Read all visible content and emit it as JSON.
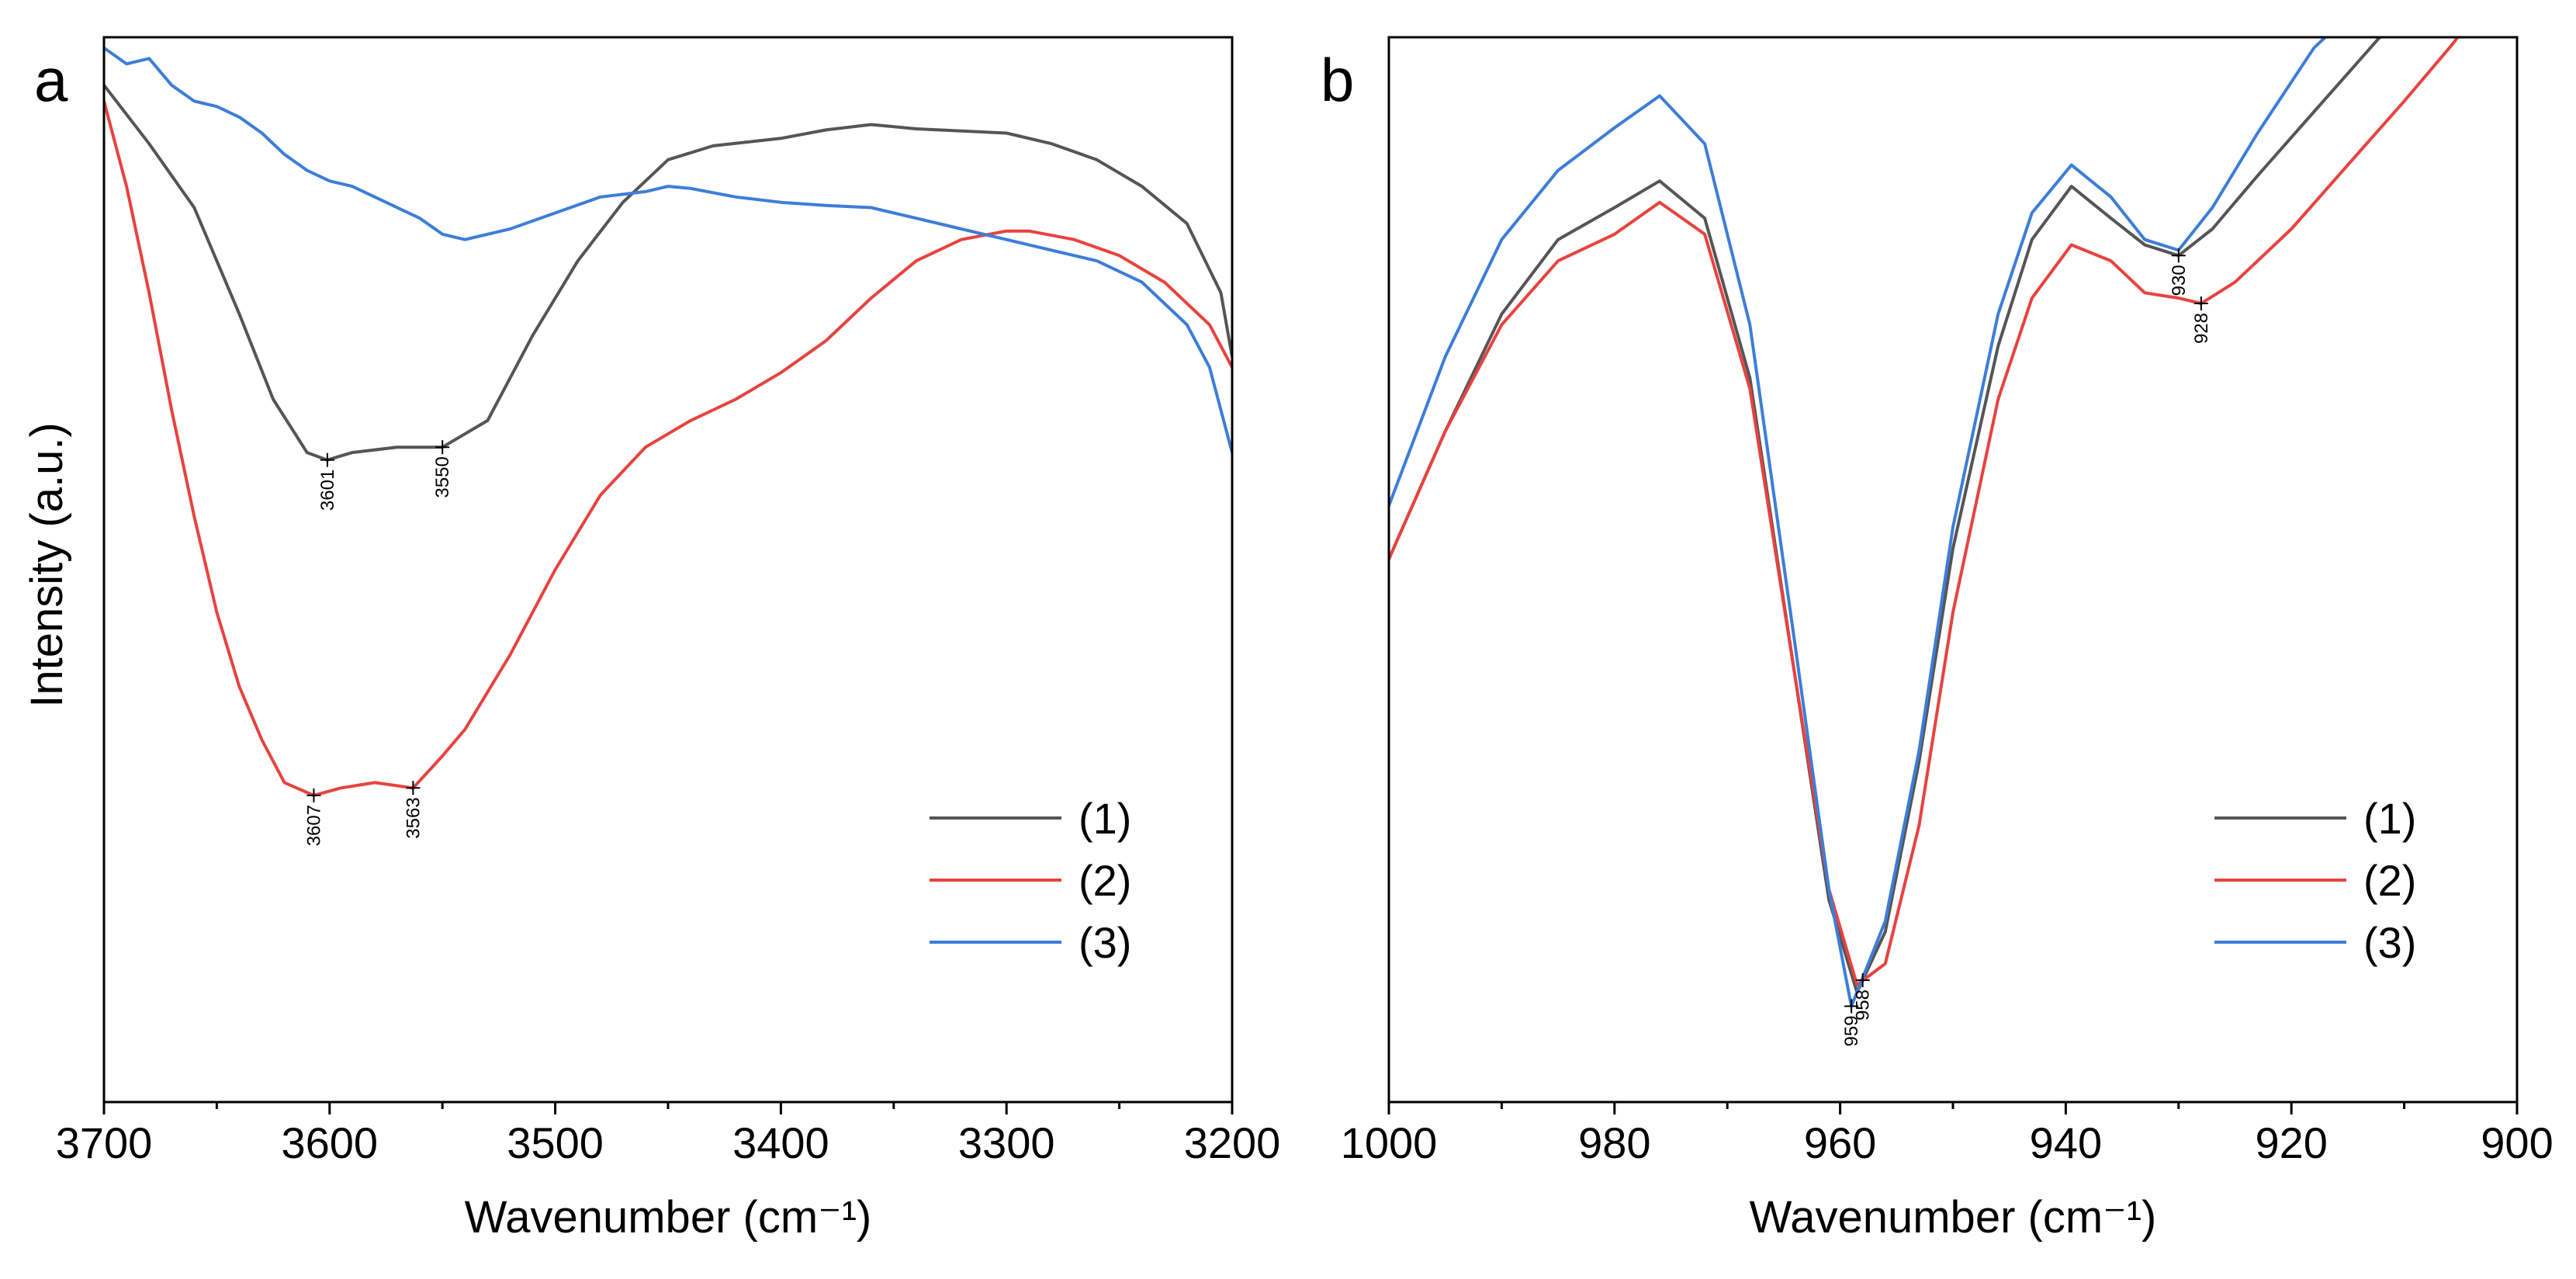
{
  "figure": {
    "ylabel": "Intensity (a.u.)"
  },
  "chart_data": [
    {
      "type": "line",
      "panel": "a",
      "xlabel": "Wavenumber (cm⁻¹)",
      "ylabel": "Intensity (a.u.)",
      "xlim": [
        3700,
        3200
      ],
      "ylim": [
        0,
        100
      ],
      "x_reversed": true,
      "xticks": [
        3700,
        3600,
        3500,
        3400,
        3300,
        3200
      ],
      "xtick_labels": [
        "3700",
        "3600",
        "3500",
        "3400",
        "3300",
        "3200"
      ],
      "legend_position": "bottom-right",
      "series": [
        {
          "name": "(1)",
          "color": "#555555",
          "x": [
            3700,
            3680,
            3660,
            3640,
            3625,
            3610,
            3601,
            3590,
            3570,
            3550,
            3530,
            3510,
            3490,
            3470,
            3450,
            3430,
            3400,
            3380,
            3360,
            3340,
            3320,
            3300,
            3280,
            3260,
            3240,
            3220,
            3205,
            3200
          ],
          "y": [
            95.5,
            90.0,
            84.0,
            74.0,
            66.0,
            61.0,
            60.3,
            61.0,
            61.5,
            61.5,
            64.0,
            72.0,
            79.0,
            84.5,
            88.5,
            89.8,
            90.5,
            91.3,
            91.8,
            91.4,
            91.2,
            91.0,
            90.0,
            88.5,
            86.0,
            82.5,
            76.0,
            70.0
          ]
        },
        {
          "name": "(2)",
          "color": "#E8423F",
          "x": [
            3700,
            3690,
            3680,
            3670,
            3660,
            3650,
            3640,
            3630,
            3620,
            3607,
            3595,
            3580,
            3563,
            3550,
            3540,
            3520,
            3500,
            3480,
            3460,
            3440,
            3420,
            3400,
            3380,
            3360,
            3340,
            3320,
            3300,
            3290,
            3270,
            3250,
            3230,
            3210,
            3200
          ],
          "y": [
            94.0,
            86.0,
            76.0,
            65.0,
            55.0,
            46.0,
            39.0,
            34.0,
            30.0,
            28.8,
            29.5,
            30.0,
            29.5,
            32.5,
            35.0,
            42.0,
            50.0,
            57.0,
            61.5,
            64.0,
            66.0,
            68.5,
            71.5,
            75.5,
            79.0,
            81.0,
            81.8,
            81.8,
            81.0,
            79.5,
            77.0,
            73.0,
            69.0
          ]
        },
        {
          "name": "(3)",
          "color": "#3D7DD8",
          "x": [
            3700,
            3690,
            3680,
            3670,
            3660,
            3650,
            3640,
            3630,
            3620,
            3610,
            3600,
            3590,
            3580,
            3570,
            3560,
            3550,
            3540,
            3530,
            3520,
            3500,
            3480,
            3460,
            3450,
            3440,
            3420,
            3400,
            3380,
            3360,
            3340,
            3320,
            3300,
            3280,
            3260,
            3240,
            3220,
            3210,
            3200
          ],
          "y": [
            99.0,
            97.5,
            98.0,
            95.5,
            94.0,
            93.5,
            92.5,
            91.0,
            89.0,
            87.5,
            86.5,
            86.0,
            85.0,
            84.0,
            83.0,
            81.5,
            81.0,
            81.5,
            82.0,
            83.5,
            85.0,
            85.5,
            86.0,
            85.8,
            85.0,
            84.5,
            84.2,
            84.0,
            83.0,
            82.0,
            81.0,
            80.0,
            79.0,
            77.0,
            73.0,
            69.0,
            61.0
          ]
        }
      ],
      "peak_labels": [
        {
          "series": "(1)",
          "x": 3601,
          "text": "3601"
        },
        {
          "series": "(1)",
          "x": 3550,
          "text": "3550"
        },
        {
          "series": "(2)",
          "x": 3607,
          "text": "3607"
        },
        {
          "series": "(2)",
          "x": 3563,
          "text": "3563"
        }
      ]
    },
    {
      "type": "line",
      "panel": "b",
      "xlabel": "Wavenumber (cm⁻¹)",
      "xlim": [
        1000,
        900
      ],
      "ylim": [
        0,
        100
      ],
      "x_reversed": true,
      "xticks": [
        1000,
        980,
        960,
        940,
        920,
        900
      ],
      "xtick_labels": [
        "1000",
        "980",
        "960",
        "940",
        "920",
        "900"
      ],
      "legend_position": "bottom-right",
      "series": [
        {
          "name": "(1)",
          "color": "#555555",
          "x": [
            1000,
            995,
            990,
            985,
            980,
            976,
            972,
            968,
            964,
            961,
            958.5,
            956,
            953,
            950,
            946,
            943,
            939.5,
            936,
            933,
            930,
            927,
            923,
            918,
            913,
            910.5
          ],
          "y": [
            51.0,
            63.0,
            74.0,
            81.0,
            84.0,
            86.5,
            83.0,
            68.0,
            40.0,
            19.0,
            10.3,
            16.0,
            32.0,
            52.0,
            71.0,
            81.0,
            86.0,
            83.0,
            80.5,
            79.5,
            82.0,
            87.0,
            93.0,
            99.0,
            102.0
          ]
        },
        {
          "name": "(2)",
          "color": "#E8423F",
          "x": [
            1000,
            995,
            990,
            985,
            980,
            976,
            972,
            968,
            964,
            961,
            958.5,
            956,
            953,
            950,
            946,
            943,
            939.5,
            936,
            933,
            930,
            928,
            925,
            920,
            915,
            910,
            906,
            904.5
          ],
          "y": [
            51.0,
            63.0,
            73.0,
            79.0,
            81.5,
            84.5,
            81.5,
            67.0,
            40.0,
            20.0,
            11.0,
            13.0,
            26.0,
            46.0,
            66.0,
            75.5,
            80.5,
            79.0,
            76.0,
            75.5,
            75.0,
            77.0,
            82.0,
            88.0,
            94.0,
            99.0,
            101.0
          ]
        },
        {
          "name": "(3)",
          "color": "#3D7DD8",
          "x": [
            1000,
            995,
            990,
            985,
            980,
            976,
            972,
            968,
            964,
            961,
            959,
            956,
            953,
            950,
            946,
            943,
            939.5,
            936,
            933,
            930,
            927,
            923,
            918,
            915,
            913
          ],
          "y": [
            56.0,
            70.0,
            81.0,
            87.5,
            91.5,
            94.5,
            90.0,
            73.0,
            43.0,
            20.0,
            9.0,
            17.0,
            33.0,
            54.0,
            74.0,
            83.5,
            88.0,
            85.0,
            81.0,
            80.0,
            84.0,
            91.0,
            99.0,
            102.0,
            103.0
          ]
        }
      ],
      "peak_labels": [
        {
          "series": "(3)",
          "x": 959,
          "text": "959"
        },
        {
          "series": "(1)",
          "x": 958,
          "text": "958"
        },
        {
          "series": "(1)",
          "x": 930,
          "text": "930"
        },
        {
          "series": "(2)",
          "x": 928,
          "text": "928"
        }
      ]
    }
  ]
}
